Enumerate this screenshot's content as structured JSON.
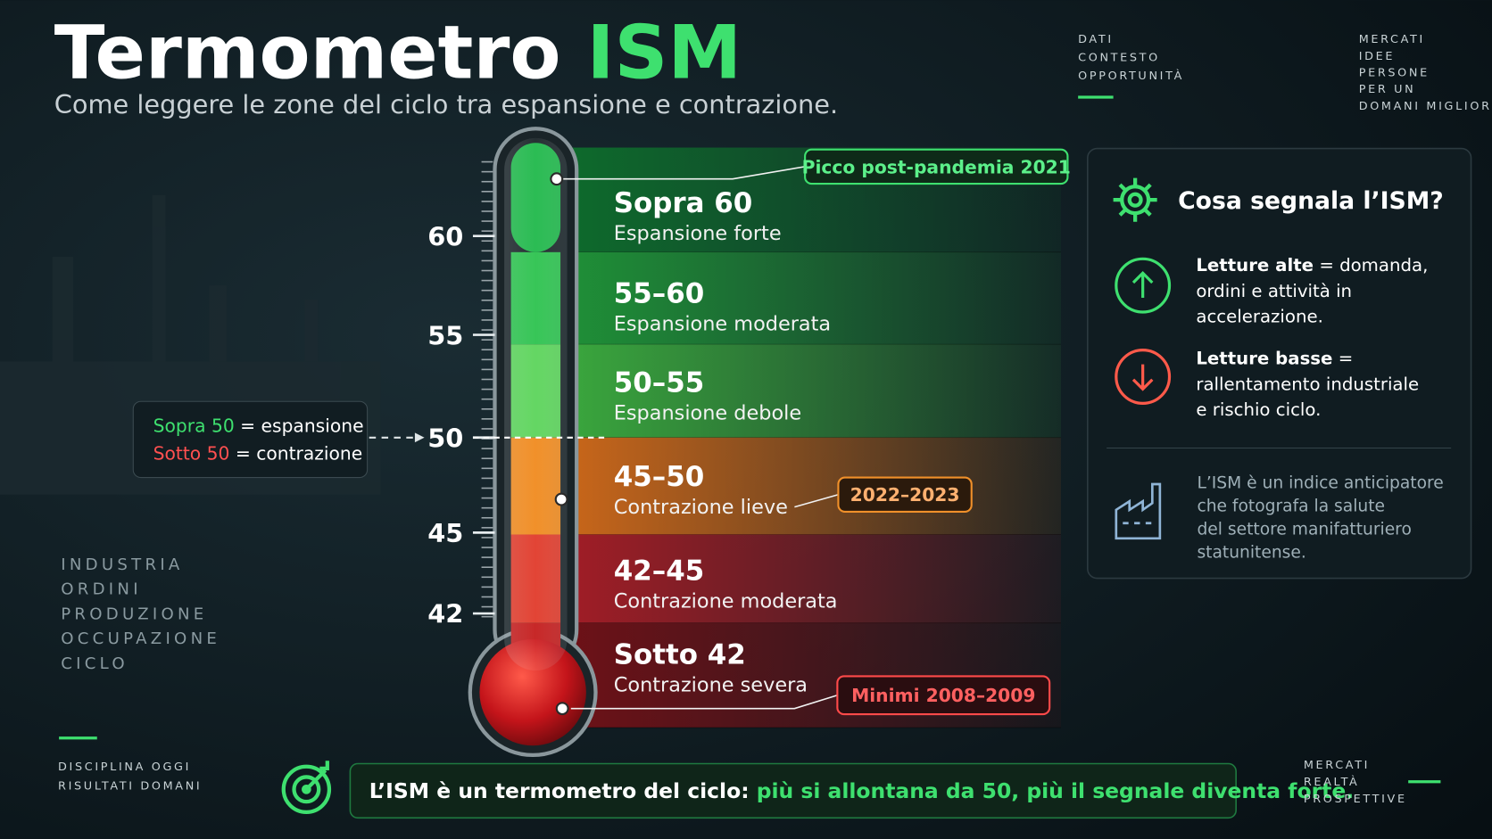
{
  "header": {
    "title": "Termometro",
    "title_highlight": "ISM",
    "subtitle": "Come leggere le zone del ciclo tra espansione e contrazione."
  },
  "top_tags_left": [
    "DATI",
    "CONTESTO",
    "OPPORTUNITÀ"
  ],
  "top_tags_right": [
    "MERCATI",
    "IDEE",
    "PERSONE",
    "PER UN",
    "DOMANI MIGLIORE"
  ],
  "scale": {
    "ticks": [
      60,
      55,
      50,
      45,
      42
    ]
  },
  "legend": {
    "above": "Sopra 50",
    "above_text": "= espansione",
    "below": "Sotto 50",
    "below_text": "= contrazione"
  },
  "zones": [
    {
      "range": "Sopra 60",
      "label": "Espansione forte"
    },
    {
      "range": "55–60",
      "label": "Espansione moderata"
    },
    {
      "range": "50–55",
      "label": "Espansione debole"
    },
    {
      "range": "45–50",
      "label": "Contrazione lieve"
    },
    {
      "range": "42–45",
      "label": "Contrazione moderata"
    },
    {
      "range": "Sotto 42",
      "label": "Contrazione severa"
    }
  ],
  "callouts": [
    "Picco post-pandemia 2021",
    "2022–2023",
    "Minimi 2008–2009"
  ],
  "side_words": [
    "INDUSTRIA",
    "ORDINI",
    "PRODUZIONE",
    "OCCUPAZIONE",
    "CICLO"
  ],
  "bottom_left": [
    "DISCIPLINA OGGI",
    "RISULTATI DOMANI"
  ],
  "bottom_right": [
    "MERCATI",
    "REALTÀ",
    "PROSPETTIVE"
  ],
  "panel": {
    "title": "Cosa segnala l’ISM?",
    "items": [
      {
        "bold": "Letture alte",
        "lines": [
          "= domanda,",
          "ordini e attività in",
          "accelerazione."
        ]
      },
      {
        "bold": "Letture basse",
        "lines": [
          "=",
          "rallentamento industriale",
          "e rischio ciclo."
        ]
      }
    ],
    "note": [
      "L’ISM è un indice anticipatore",
      "che fotografa la salute",
      "del settore manifatturiero",
      "statunitense."
    ]
  },
  "footer": {
    "lead": "L’ISM è un termometro del ciclo:",
    "highlight": "più si allontana da 50, più il segnale diventa forte."
  }
}
